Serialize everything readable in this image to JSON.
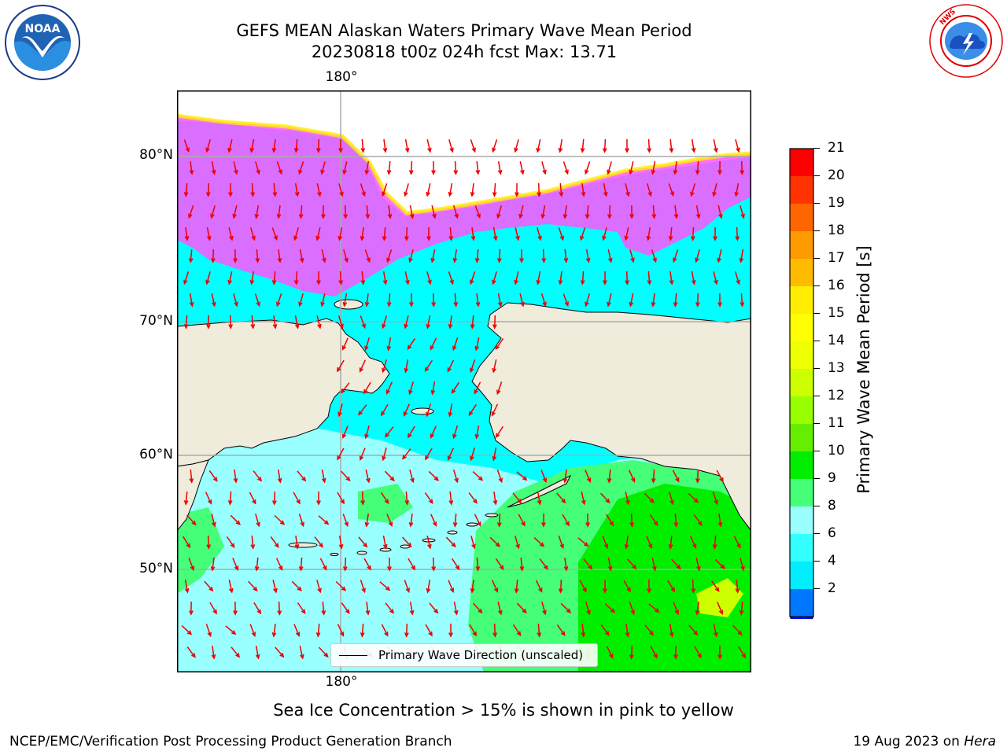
{
  "header": {
    "title_line1": "GEFS MEAN Alaskan Waters Primary Wave Mean Period",
    "title_line2": "20230818 t00z 024h fcst   Max: 13.71"
  },
  "logos": {
    "noaa": {
      "text": "NOAA",
      "ring_text": "NATIONAL OCEANIC AND ATMOSPHERIC ADMINISTRATION · U.S. DEPARTMENT OF COMMERCE"
    },
    "nws": {
      "ring_text": "NATIONAL WEATHER SERVICE"
    }
  },
  "map": {
    "lon_label_top": "180°",
    "lon_label_bottom": "180°",
    "lat_labels": [
      "80°N",
      "70°N",
      "60°N",
      "50°N"
    ],
    "colors": {
      "land": "#efecdc",
      "ocean_short": "#00ffff",
      "ocean_mid": "#99ffff",
      "ocean_long": "#33ff66",
      "ice": "#ff55ff",
      "arrow": "#ee0000"
    },
    "legend": {
      "label": "Primary Wave Direction (unscaled)"
    }
  },
  "colorbar": {
    "title": "Primary Wave Mean Period [s]",
    "ticks": [
      "21",
      "20",
      "19",
      "18",
      "17",
      "16",
      "15",
      "14",
      "13",
      "12",
      "11",
      "10",
      "9",
      "8",
      "6",
      "4",
      "2"
    ],
    "colors": [
      "#ff0000",
      "#ff3300",
      "#ff6600",
      "#ff9900",
      "#ffbb00",
      "#ffee00",
      "#ffff00",
      "#eeff00",
      "#ccff00",
      "#99ff00",
      "#66ee00",
      "#00ee00",
      "#44ff77",
      "#99ffff",
      "#33ffff",
      "#00eeff",
      "#0077ff"
    ],
    "extend_color": "#0000ff"
  },
  "subtitle": "Sea Ice Concentration > 15% is shown in pink to yellow",
  "footer": {
    "left": "NCEP/EMC/Verification Post Processing Product Generation Branch",
    "right_prefix": "19 Aug 2023 on ",
    "right_machine": "Hera"
  }
}
